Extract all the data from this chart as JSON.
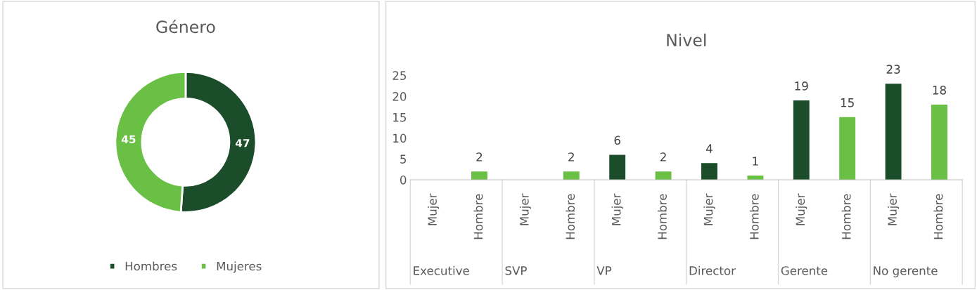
{
  "chart_data": [
    {
      "type": "donut",
      "title": "Género",
      "categories": [
        "Hombres",
        "Mujeres"
      ],
      "values": [
        47,
        45
      ],
      "colors": [
        "#1b4d2b",
        "#6abf45"
      ],
      "data_labels": true,
      "legend": "bottom"
    },
    {
      "type": "bar",
      "title": "Nivel",
      "categories": [
        "Mujer",
        "Hombre",
        "Mujer",
        "Hombre",
        "Mujer",
        "Hombre",
        "Mujer",
        "Hombre",
        "Mujer",
        "Hombre",
        "Mujer",
        "Hombre"
      ],
      "values": [
        0,
        2,
        0,
        2,
        6,
        2,
        4,
        1,
        19,
        15,
        23,
        18
      ],
      "colors": [
        "#1b4d2b",
        "#6abf45",
        "#1b4d2b",
        "#6abf45",
        "#1b4d2b",
        "#6abf45",
        "#1b4d2b",
        "#6abf45",
        "#1b4d2b",
        "#6abf45",
        "#1b4d2b",
        "#6abf45"
      ],
      "value_labels": [
        null,
        "2",
        null,
        "2",
        "6",
        "2",
        "4",
        "1",
        "19",
        "15",
        "23",
        "18"
      ],
      "annotations": [
        "Executive",
        "SVP",
        "VP",
        "Director",
        "Gerente",
        "No gerente"
      ],
      "ylim": [
        0,
        25
      ],
      "yticks": [
        0,
        5,
        10,
        15,
        20,
        25
      ],
      "grid": false
    }
  ]
}
